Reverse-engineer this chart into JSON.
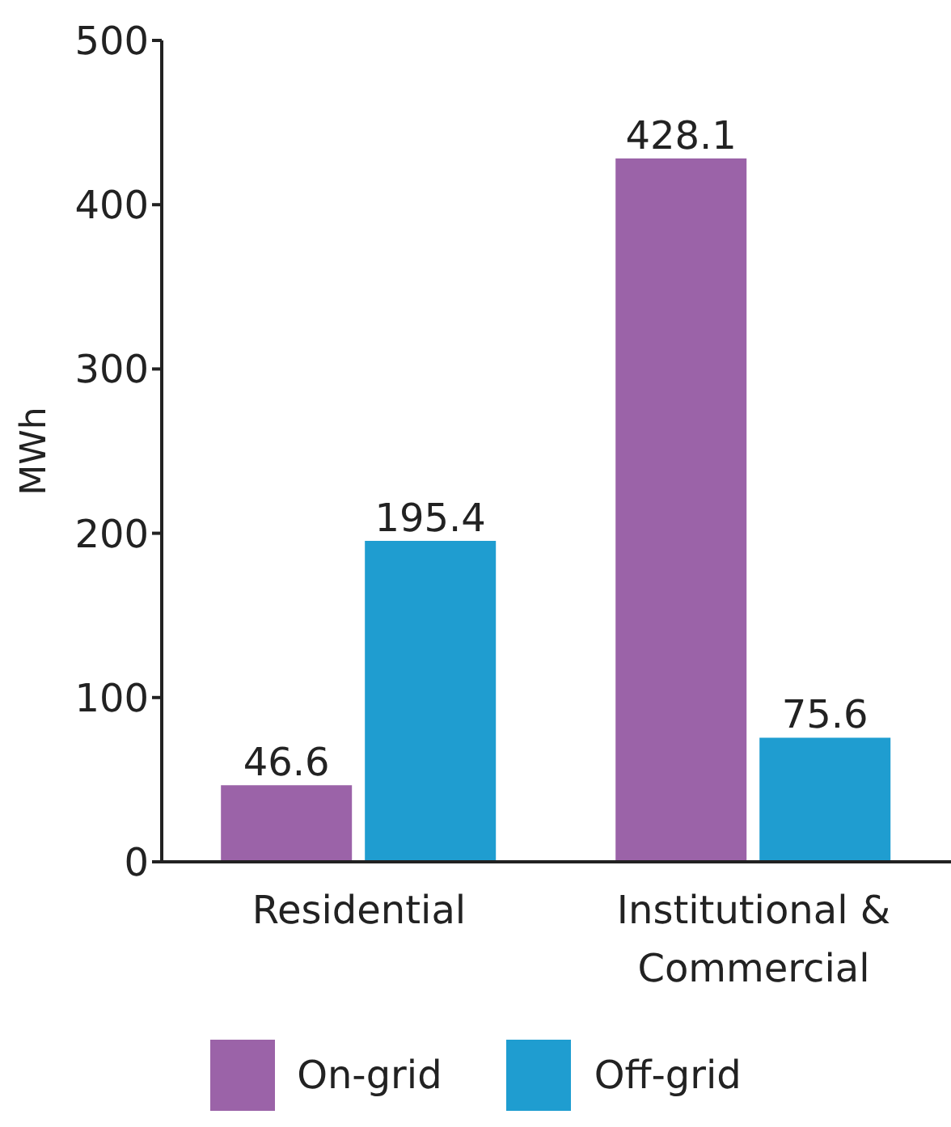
{
  "chart_data": {
    "type": "bar",
    "ylabel": "MWh",
    "categories": [
      "Residential",
      "Institutional & Commercial"
    ],
    "series": [
      {
        "name": "On-grid",
        "color": "#9b63a8",
        "values": [
          46.6,
          428.1
        ]
      },
      {
        "name": "Off-grid",
        "color": "#1f9dd0",
        "values": [
          195.4,
          75.6
        ]
      }
    ],
    "ylim": [
      0,
      500
    ],
    "yticks": [
      0,
      100,
      200,
      300,
      400,
      500
    ],
    "data_labels": true,
    "legend": "bottom",
    "grid": false
  }
}
